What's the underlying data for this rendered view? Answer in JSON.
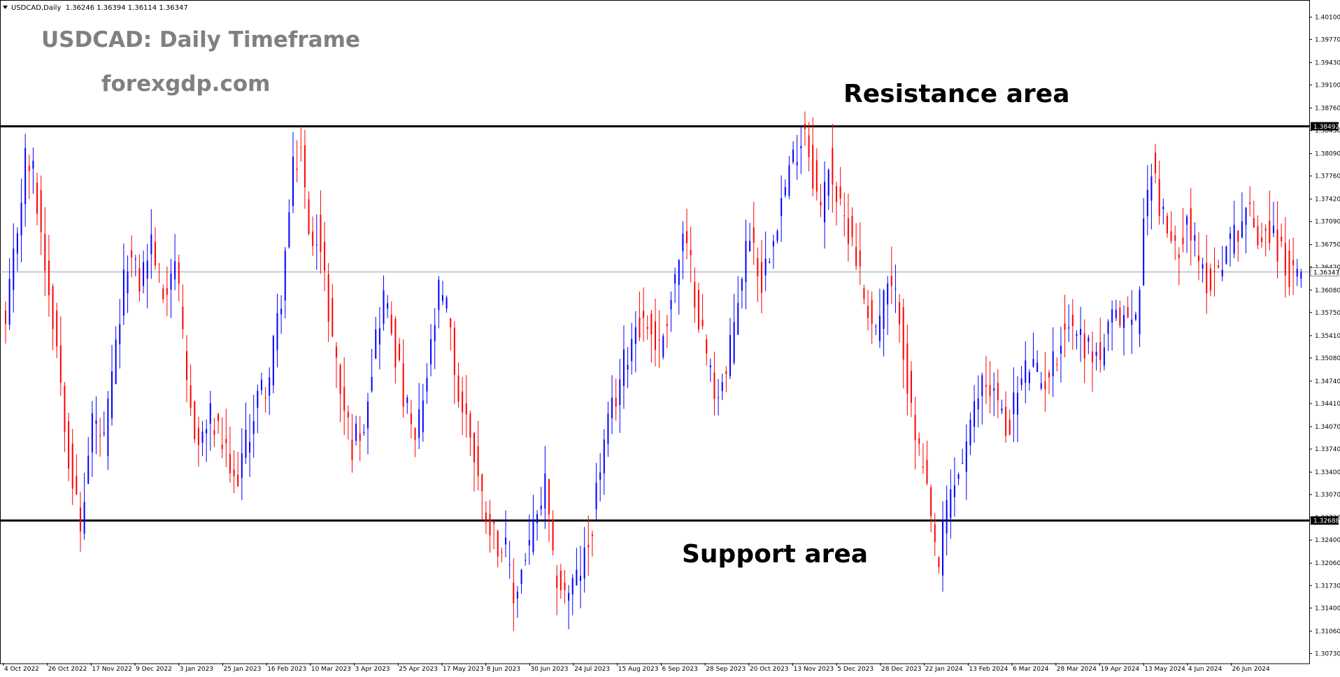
{
  "header": {
    "symbol_line": "USDCAD,Daily  1.36246 1.36394 1.36114 1.36347"
  },
  "watermark": {
    "title": "USDCAD: Daily Timeframe",
    "site": "forexgdp.com"
  },
  "annotations": {
    "resistance": "Resistance area",
    "support": "Support area"
  },
  "colors": {
    "bull": "#0000ff",
    "bear": "#ff0000",
    "level_line": "#000000",
    "current_line": "#8c9fb5",
    "watermark": "#808080",
    "price_tag_bg": "#000000",
    "price_tag_text": "#ffffff"
  },
  "chart_data": {
    "type": "candlestick",
    "symbol": "USDCAD",
    "timeframe": "Daily",
    "ylim": [
      1.3059,
      1.4031
    ],
    "y_ticks": [
      "1.40100",
      "1.39770",
      "1.39430",
      "1.39100",
      "1.38760",
      "1.38430",
      "1.38090",
      "1.37760",
      "1.37420",
      "1.37090",
      "1.36750",
      "1.36420",
      "1.36080",
      "1.35750",
      "1.35410",
      "1.35080",
      "1.34740",
      "1.34410",
      "1.34070",
      "1.33740",
      "1.33400",
      "1.33070",
      "1.32730",
      "1.32400",
      "1.32060",
      "1.31730",
      "1.31400",
      "1.31060",
      "1.30730"
    ],
    "x_ticks": [
      "4 Oct 2022",
      "26 Oct 2022",
      "17 Nov 2022",
      "9 Dec 2022",
      "3 Jan 2023",
      "25 Jan 2023",
      "16 Feb 2023",
      "10 Mar 2023",
      "3 Apr 2023",
      "25 Apr 2023",
      "17 May 2023",
      "8 Jun 2023",
      "30 Jun 2023",
      "24 Jul 2023",
      "15 Aug 2023",
      "6 Sep 2023",
      "28 Sep 2023",
      "20 Oct 2023",
      "13 Nov 2023",
      "5 Dec 2023",
      "28 Dec 2023",
      "22 Jan 2024",
      "13 Feb 2024",
      "6 Mar 2024",
      "28 Mar 2024",
      "19 Apr 2024",
      "13 May 2024",
      "4 Jun 2024",
      "26 Jun 2024"
    ],
    "levels": {
      "resistance": "1.38492",
      "support": "1.32688",
      "current": "1.36347"
    },
    "last_bar": {
      "open": 1.36246,
      "high": 1.36394,
      "low": 1.36114,
      "close": 1.36347
    },
    "closes": [
      [
        0,
        1.355
      ],
      [
        5,
        1.38
      ],
      [
        7,
        1.378
      ],
      [
        10,
        1.365
      ],
      [
        13,
        1.353
      ],
      [
        16,
        1.337
      ],
      [
        19,
        1.325
      ],
      [
        22,
        1.342
      ],
      [
        25,
        1.338
      ],
      [
        28,
        1.352
      ],
      [
        31,
        1.366
      ],
      [
        34,
        1.362
      ],
      [
        37,
        1.368
      ],
      [
        40,
        1.36
      ],
      [
        43,
        1.366
      ],
      [
        46,
        1.346
      ],
      [
        49,
        1.338
      ],
      [
        52,
        1.342
      ],
      [
        55,
        1.338
      ],
      [
        58,
        1.332
      ],
      [
        61,
        1.338
      ],
      [
        64,
        1.345
      ],
      [
        67,
        1.348
      ],
      [
        70,
        1.36
      ],
      [
        73,
        1.378
      ],
      [
        75,
        1.382
      ],
      [
        77,
        1.368
      ],
      [
        79,
        1.37
      ],
      [
        82,
        1.358
      ],
      [
        85,
        1.346
      ],
      [
        88,
        1.338
      ],
      [
        91,
        1.342
      ],
      [
        94,
        1.354
      ],
      [
        96,
        1.36
      ],
      [
        98,
        1.355
      ],
      [
        101,
        1.345
      ],
      [
        104,
        1.338
      ],
      [
        107,
        1.348
      ],
      [
        110,
        1.36
      ],
      [
        112,
        1.358
      ],
      [
        115,
        1.345
      ],
      [
        118,
        1.34
      ],
      [
        121,
        1.33
      ],
      [
        124,
        1.325
      ],
      [
        127,
        1.322
      ],
      [
        129,
        1.315
      ],
      [
        132,
        1.322
      ],
      [
        135,
        1.327
      ],
      [
        137,
        1.332
      ],
      [
        139,
        1.32
      ],
      [
        142,
        1.316
      ],
      [
        145,
        1.318
      ],
      [
        148,
        1.323
      ],
      [
        151,
        1.335
      ],
      [
        154,
        1.343
      ],
      [
        157,
        1.35
      ],
      [
        160,
        1.356
      ],
      [
        163,
        1.356
      ],
      [
        166,
        1.352
      ],
      [
        169,
        1.36
      ],
      [
        172,
        1.368
      ],
      [
        174,
        1.364
      ],
      [
        177,
        1.354
      ],
      [
        180,
        1.346
      ],
      [
        183,
        1.348
      ],
      [
        186,
        1.36
      ],
      [
        189,
        1.37
      ],
      [
        192,
        1.362
      ],
      [
        195,
        1.37
      ],
      [
        198,
        1.376
      ],
      [
        201,
        1.382
      ],
      [
        203,
        1.385
      ],
      [
        205,
        1.378
      ],
      [
        207,
        1.372
      ],
      [
        209,
        1.38
      ],
      [
        212,
        1.372
      ],
      [
        215,
        1.369
      ],
      [
        218,
        1.36
      ],
      [
        221,
        1.355
      ],
      [
        224,
        1.361
      ],
      [
        227,
        1.358
      ],
      [
        230,
        1.342
      ],
      [
        233,
        1.334
      ],
      [
        235,
        1.326
      ],
      [
        237,
        1.32
      ],
      [
        239,
        1.329
      ],
      [
        242,
        1.334
      ],
      [
        245,
        1.34
      ],
      [
        248,
        1.348
      ],
      [
        251,
        1.346
      ],
      [
        254,
        1.34
      ],
      [
        257,
        1.346
      ],
      [
        260,
        1.35
      ],
      [
        263,
        1.347
      ],
      [
        266,
        1.35
      ],
      [
        269,
        1.356
      ],
      [
        272,
        1.355
      ],
      [
        275,
        1.352
      ],
      [
        278,
        1.351
      ],
      [
        281,
        1.356
      ],
      [
        284,
        1.357
      ],
      [
        287,
        1.356
      ],
      [
        289,
        1.37
      ],
      [
        291,
        1.38
      ],
      [
        294,
        1.371
      ],
      [
        297,
        1.366
      ],
      [
        300,
        1.372
      ],
      [
        303,
        1.364
      ],
      [
        306,
        1.362
      ],
      [
        309,
        1.366
      ],
      [
        312,
        1.369
      ],
      [
        315,
        1.373
      ],
      [
        318,
        1.369
      ],
      [
        321,
        1.37
      ],
      [
        324,
        1.366
      ],
      [
        327,
        1.362
      ],
      [
        329,
        1.3634
      ]
    ]
  }
}
